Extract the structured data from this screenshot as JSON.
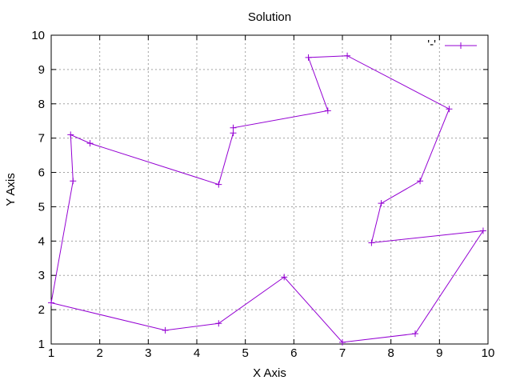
{
  "chart_data": {
    "type": "line",
    "title": "Solution",
    "xlabel": "X Axis",
    "ylabel": "Y Axis",
    "xlim": [
      1,
      10
    ],
    "ylim": [
      1,
      10
    ],
    "xticks": [
      1,
      2,
      3,
      4,
      5,
      6,
      7,
      8,
      9,
      10
    ],
    "yticks": [
      1,
      2,
      3,
      4,
      5,
      6,
      7,
      8,
      9,
      10
    ],
    "grid": true,
    "legend_position": "top-right",
    "series": [
      {
        "name": "'-'",
        "color": "#9400d3",
        "marker": "plus",
        "x": [
          1.0,
          3.35,
          4.45,
          5.8,
          7.0,
          8.5,
          9.9,
          7.6,
          7.8,
          8.6,
          9.2,
          7.1,
          6.3,
          6.7,
          4.75,
          4.75,
          4.45,
          1.8,
          1.4,
          1.45,
          1.0
        ],
        "y": [
          2.2,
          1.4,
          1.6,
          2.95,
          1.05,
          1.3,
          4.3,
          3.95,
          5.1,
          5.75,
          7.85,
          9.4,
          9.35,
          7.8,
          7.3,
          7.15,
          5.65,
          6.85,
          7.1,
          5.75,
          2.2
        ]
      }
    ]
  }
}
